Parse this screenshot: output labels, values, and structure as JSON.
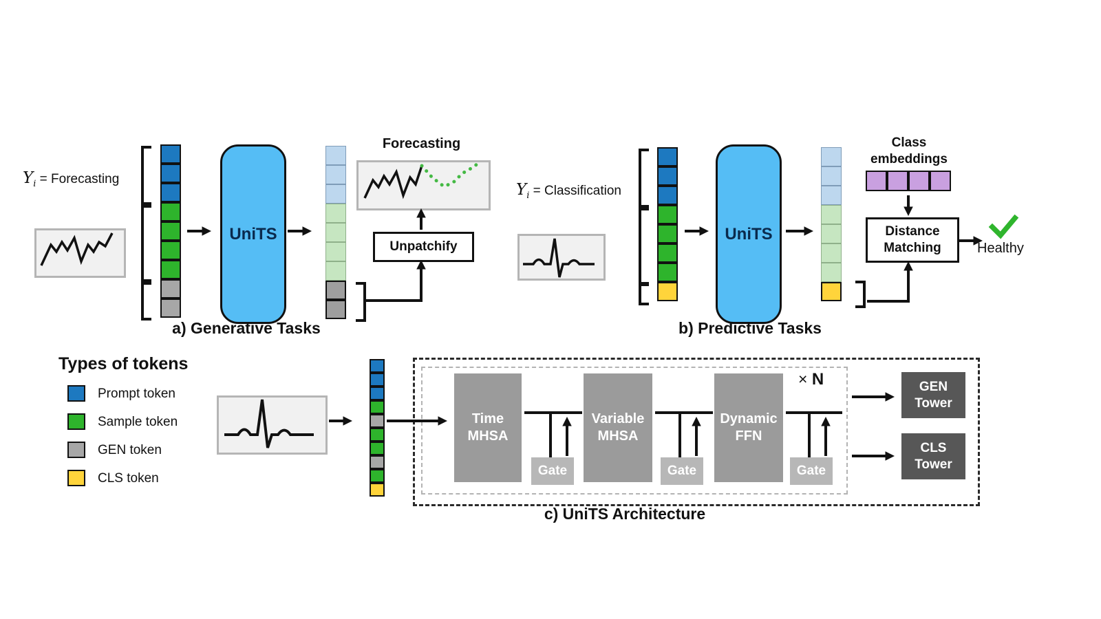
{
  "colors": {
    "prompt-blue": "#1d79c0",
    "sample-green": "#2eb42c",
    "gen-gray": "#a7a7a7",
    "cls-yellow": "#ffd43b",
    "prompt-out": "#bdd7ee",
    "sample-out": "#c6e6c1",
    "gen-out": "#9e9e9e",
    "class-purple": "#c9a0e0",
    "units-blue": "#55bdf5",
    "block-gray": "#9b9b9b",
    "gate-gray": "#b7b7b7",
    "tower-gray": "#575757",
    "check-green": "#2fb52d",
    "forecast-green": "#44b944"
  },
  "panel_a": {
    "y_symbol": "Y",
    "y_sub": "i",
    "task_text": "= Forecasting",
    "model_label": "UniTS",
    "plot_title": "Forecasting",
    "unpatchify_label": "Unpatchify",
    "caption": "a) Generative Tasks",
    "input_tokens": [
      "prompt",
      "prompt",
      "prompt",
      "sample",
      "sample",
      "sample",
      "sample",
      "gen",
      "gen"
    ],
    "output_tokens": [
      "prompt-out",
      "prompt-out",
      "prompt-out",
      "sample-out",
      "sample-out",
      "sample-out",
      "sample-out",
      "gen-out",
      "gen-out"
    ]
  },
  "panel_b": {
    "y_symbol": "Y",
    "y_sub": "i",
    "task_text": "= Classification",
    "model_label": "UniTS",
    "class_embeddings_label": "Class\nembeddings",
    "distance_matching_label": "Distance\nMatching",
    "result_label": "Healthy",
    "caption": "b) Predictive Tasks",
    "input_tokens": [
      "prompt",
      "prompt",
      "prompt",
      "sample",
      "sample",
      "sample",
      "sample",
      "cls"
    ],
    "output_tokens": [
      "prompt-out",
      "prompt-out",
      "prompt-out",
      "sample-out",
      "sample-out",
      "sample-out",
      "sample-out",
      "cls-out"
    ],
    "class_tokens": [
      "class-emb",
      "class-emb",
      "class-emb",
      "class-emb"
    ]
  },
  "panel_c": {
    "caption": "c) UniTS Architecture",
    "tokens": [
      "prompt",
      "prompt",
      "prompt",
      "sample",
      "gen",
      "sample",
      "sample",
      "gen",
      "sample",
      "cls"
    ],
    "block1_label": "Time\nMHSA",
    "block2_label": "Variable\nMHSA",
    "block3_label": "Dynamic\nFFN",
    "gate_label": "Gate",
    "repeat_times": "×",
    "repeat_n": "N",
    "tower1_label": "GEN\nTower",
    "tower2_label": "CLS\nTower"
  },
  "legend": {
    "title": "Types of tokens",
    "items": [
      {
        "label": "Prompt token",
        "type": "prompt"
      },
      {
        "label": "Sample token",
        "type": "sample"
      },
      {
        "label": "GEN token",
        "type": "gen"
      },
      {
        "label": "CLS token",
        "type": "cls"
      }
    ]
  }
}
